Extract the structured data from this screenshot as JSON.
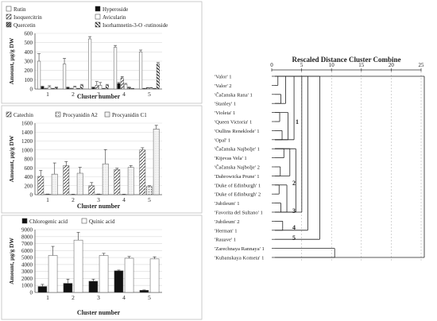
{
  "colors": {
    "axis": "#555555",
    "grid": "#d9d9d9",
    "bar_edge": "#555555",
    "black": "#111111",
    "white": "#ffffff",
    "panel_border": "#bfbfbf"
  },
  "chart_data": [
    {
      "type": "bar",
      "ylabel": "Amount, µg/g DW",
      "xlabel": "Cluster number",
      "ylim": [
        0,
        600
      ],
      "yticks": [
        0,
        100,
        200,
        300,
        400,
        500,
        600
      ],
      "categories": [
        "1",
        "2",
        "3",
        "4",
        "5"
      ],
      "grid": true,
      "legend": "top, two columns",
      "series": [
        {
          "name": "Rutin",
          "values": [
            300,
            270,
            540,
            450,
            400
          ],
          "errors": [
            80,
            60,
            25,
            20,
            20
          ],
          "fill": "white"
        },
        {
          "name": "Hyperoside",
          "values": [
            25,
            15,
            15,
            60,
            5
          ],
          "errors": [
            5,
            5,
            5,
            10,
            2
          ],
          "fill": "black"
        },
        {
          "name": "Isoquercitrin",
          "values": [
            5,
            5,
            40,
            120,
            10
          ],
          "errors": [
            3,
            3,
            40,
            15,
            5
          ],
          "fill": "hatch"
        },
        {
          "name": "Avicularin",
          "values": [
            20,
            20,
            40,
            50,
            10
          ],
          "errors": [
            15,
            10,
            30,
            10,
            5
          ],
          "fill": "white"
        },
        {
          "name": "Quercetin",
          "values": [
            5,
            5,
            5,
            15,
            5
          ],
          "errors": [
            2,
            2,
            2,
            5,
            2
          ],
          "fill": "dark-hatch"
        },
        {
          "name": "Isorhamnetin-3-O -rutinoside",
          "values": [
            15,
            40,
            40,
            5,
            270
          ],
          "errors": [
            5,
            10,
            10,
            2,
            15
          ],
          "fill": "stripe"
        }
      ]
    },
    {
      "type": "bar",
      "ylabel": "Amount, µg/g DW",
      "xlabel": "Cluster number",
      "ylim": [
        0,
        1600
      ],
      "yticks": [
        0,
        200,
        400,
        600,
        800,
        1000,
        1200,
        1400,
        1600
      ],
      "categories": [
        "1",
        "2",
        "3",
        "4",
        "5"
      ],
      "grid": true,
      "legend": "top, one row",
      "series": [
        {
          "name": "Catechin",
          "values": [
            410,
            650,
            200,
            560,
            1000
          ],
          "errors": [
            130,
            90,
            70,
            30,
            50
          ],
          "fill": "hatch"
        },
        {
          "name": "Procyanidin A2",
          "values": [
            10,
            5,
            10,
            5,
            180
          ],
          "errors": [
            5,
            5,
            5,
            5,
            20
          ],
          "fill": "light-hatch"
        },
        {
          "name": "Procyanidin C1",
          "values": [
            460,
            480,
            690,
            610,
            1470
          ],
          "errors": [
            250,
            130,
            320,
            40,
            80
          ],
          "fill": "light"
        }
      ]
    },
    {
      "type": "bar",
      "ylabel": "Amount, µg/g DW",
      "xlabel": "Cluster number",
      "ylim": [
        0,
        9000
      ],
      "yticks": [
        0,
        1000,
        2000,
        3000,
        4000,
        5000,
        6000,
        7000,
        8000,
        9000
      ],
      "categories": [
        "1",
        "2",
        "3",
        "4",
        "5"
      ],
      "grid": true,
      "legend": "top, one row",
      "series": [
        {
          "name": "Chlorogenic acid",
          "values": [
            850,
            1300,
            1600,
            3100,
            300
          ],
          "errors": [
            300,
            600,
            300,
            100,
            50
          ],
          "fill": "black"
        },
        {
          "name": "Quinic acid",
          "values": [
            5300,
            7500,
            5300,
            4900,
            4800
          ],
          "errors": [
            1300,
            1100,
            300,
            250,
            300
          ],
          "fill": "white"
        }
      ]
    },
    {
      "type": "dendrogram",
      "title": "Rescaled Distance Cluster Combine",
      "xlim": [
        0,
        25
      ],
      "xticks": [
        0,
        5,
        10,
        15,
        20,
        25
      ],
      "leaves": [
        "'Valor' 1",
        "'Valor' 2",
        "'Čačanska Rana' 1",
        "'Stanley' 1",
        "'Violeta' 1",
        "'Queen Victoria' 1",
        "'Oullins Reneklode' 1",
        "'Opal' 1",
        "'Čačanska Najbolje' 1",
        "'Kijevas Vela' 1",
        "'Čačanska Najbolje' 2",
        "'Dabrowicka Prune' 1",
        "'Duke of Edinburgh' 1",
        "'Duke of Edinburgh' 2",
        "'Jubileum' 1",
        "'Favorita del Sultano' 1",
        "'Jubileum' 2",
        "'Herman' 1",
        "'Rauave' 1",
        "'Zarechnaya Rannaya' 1",
        "'Kubanskaya Kometa' 1"
      ],
      "cluster_labels": [
        "1",
        "2",
        "3",
        "4",
        "5"
      ],
      "merges": [
        [
          [
            0,
            1
          ],
          0.5
        ],
        [
          [
            2,
            3
          ],
          1
        ],
        [
          [
            4,
            5
          ],
          0.8
        ],
        [
          [
            6,
            7
          ],
          1.2
        ],
        [
          [
            8,
            9
          ],
          1.5
        ],
        [
          [
            10,
            11
          ],
          0.9
        ],
        [
          [
            12,
            13
          ],
          0.7
        ],
        [
          [
            14,
            15
          ],
          1.0
        ],
        [
          [
            16,
            17
          ],
          1.3
        ],
        [
          [
            0,
            3
          ],
          1.8
        ],
        [
          [
            4,
            7
          ],
          2.2
        ],
        [
          [
            8,
            11
          ],
          2.5
        ],
        [
          [
            12,
            15
          ],
          2.0
        ],
        [
          [
            0,
            7
          ],
          3.2
        ],
        [
          [
            8,
            15
          ],
          3.5
        ],
        [
          [
            0,
            15
          ],
          4.5
        ],
        [
          [
            0,
            17
          ],
          5.5
        ],
        [
          [
            0,
            18
          ],
          7.5
        ],
        [
          [
            19,
            20
          ],
          10.0
        ],
        [
          [
            0,
            20
          ],
          25
        ]
      ]
    }
  ]
}
